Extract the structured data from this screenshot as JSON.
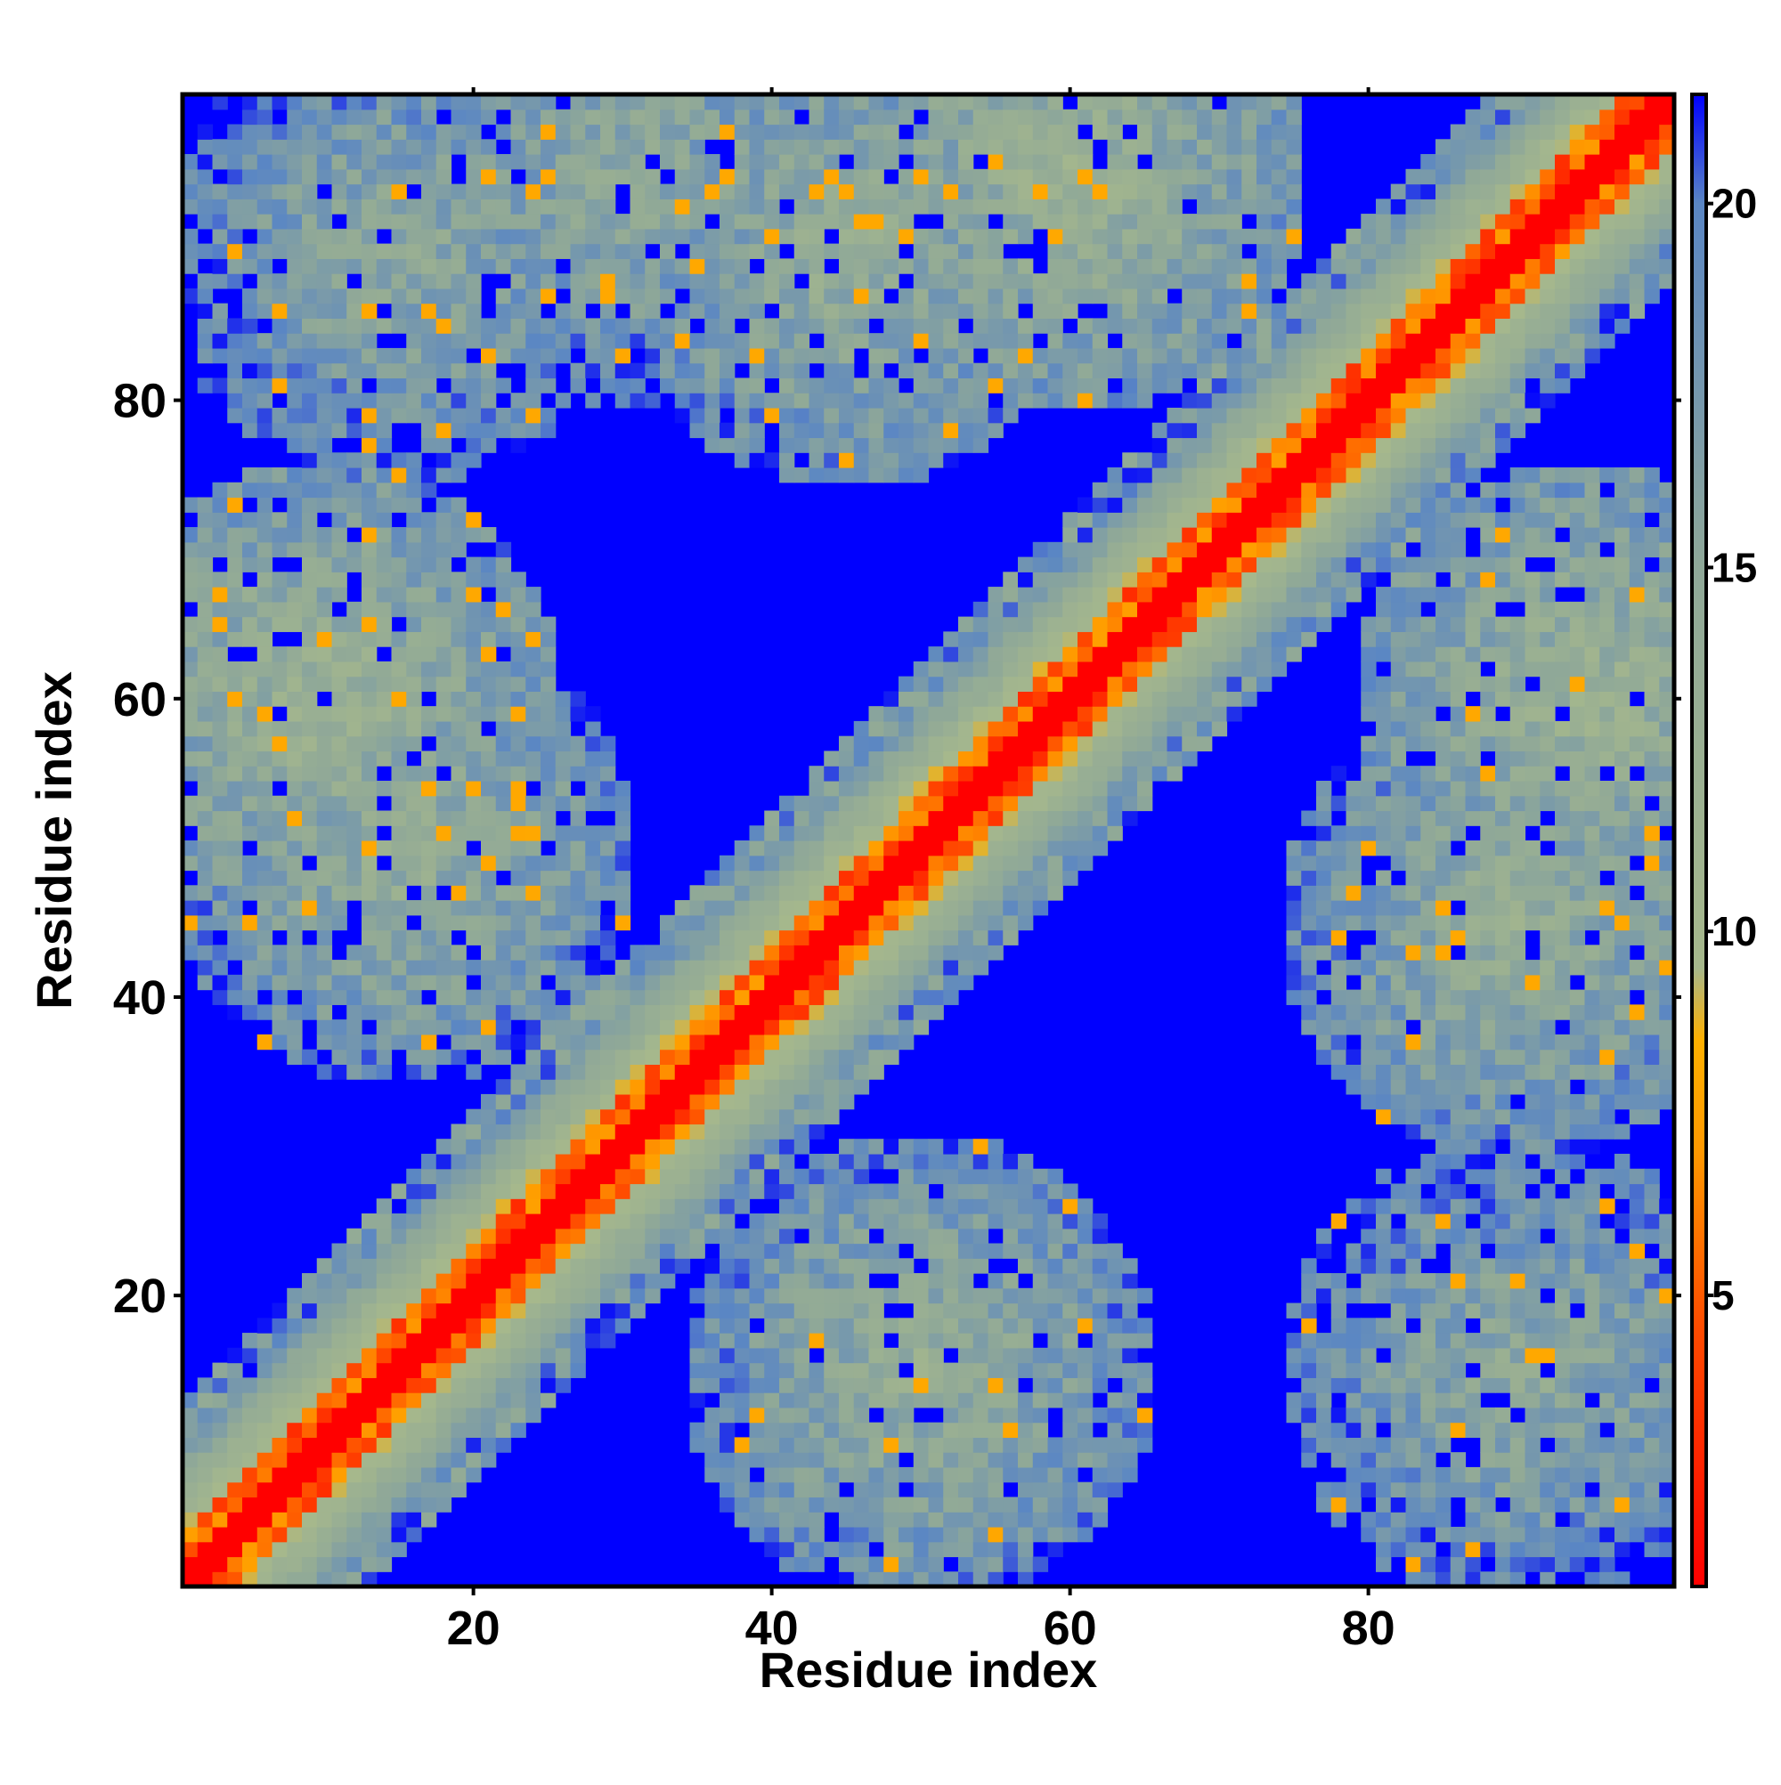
{
  "chart_data": {
    "type": "heatmap",
    "title": "",
    "xlabel": "Residue index",
    "ylabel": "Residue index",
    "x_range": [
      1,
      100
    ],
    "y_range": [
      1,
      100
    ],
    "x_ticks": [
      20,
      40,
      60,
      80
    ],
    "y_ticks": [
      20,
      40,
      60,
      80
    ],
    "colorbar": {
      "ticks": [
        5,
        10,
        15,
        20
      ],
      "range": [
        1,
        21.5
      ],
      "stops": [
        {
          "value": 1.0,
          "color": "#ff0000"
        },
        {
          "value": 4.5,
          "color": "#ff4a00"
        },
        {
          "value": 7.0,
          "color": "#ff9900"
        },
        {
          "value": 8.5,
          "color": "#ffb000"
        },
        {
          "value": 9.5,
          "color": "#a6b88c"
        },
        {
          "value": 15.0,
          "color": "#8fa898"
        },
        {
          "value": 20.0,
          "color": "#5a86c4"
        },
        {
          "value": 21.5,
          "color": "#0000ff"
        }
      ]
    },
    "grid": false,
    "legend": "colorbar-right",
    "description_of_values": {
      "diagonal": 1,
      "near_diagonal_offset_1_3": 5,
      "near_diagonal_offset_4_8": 10,
      "far_background": 21,
      "contact_clusters": [
        {
          "x_center": 50,
          "y_center": 15,
          "level": 13
        },
        {
          "x_center": 15,
          "y_center": 50,
          "level": 13
        },
        {
          "x_center": 90,
          "y_center": 45,
          "level": 13
        },
        {
          "x_center": 45,
          "y_center": 90,
          "level": 13
        },
        {
          "x_center": 90,
          "y_center": 15,
          "level": 14
        },
        {
          "x_center": 15,
          "y_center": 90,
          "level": 14
        },
        {
          "x_center": 60,
          "y_center": 95,
          "level": 12
        },
        {
          "x_center": 95,
          "y_center": 60,
          "level": 12
        },
        {
          "x_center": 30,
          "y_center": 95,
          "level": 14
        },
        {
          "x_center": 10,
          "y_center": 60,
          "level": 12
        }
      ]
    }
  }
}
